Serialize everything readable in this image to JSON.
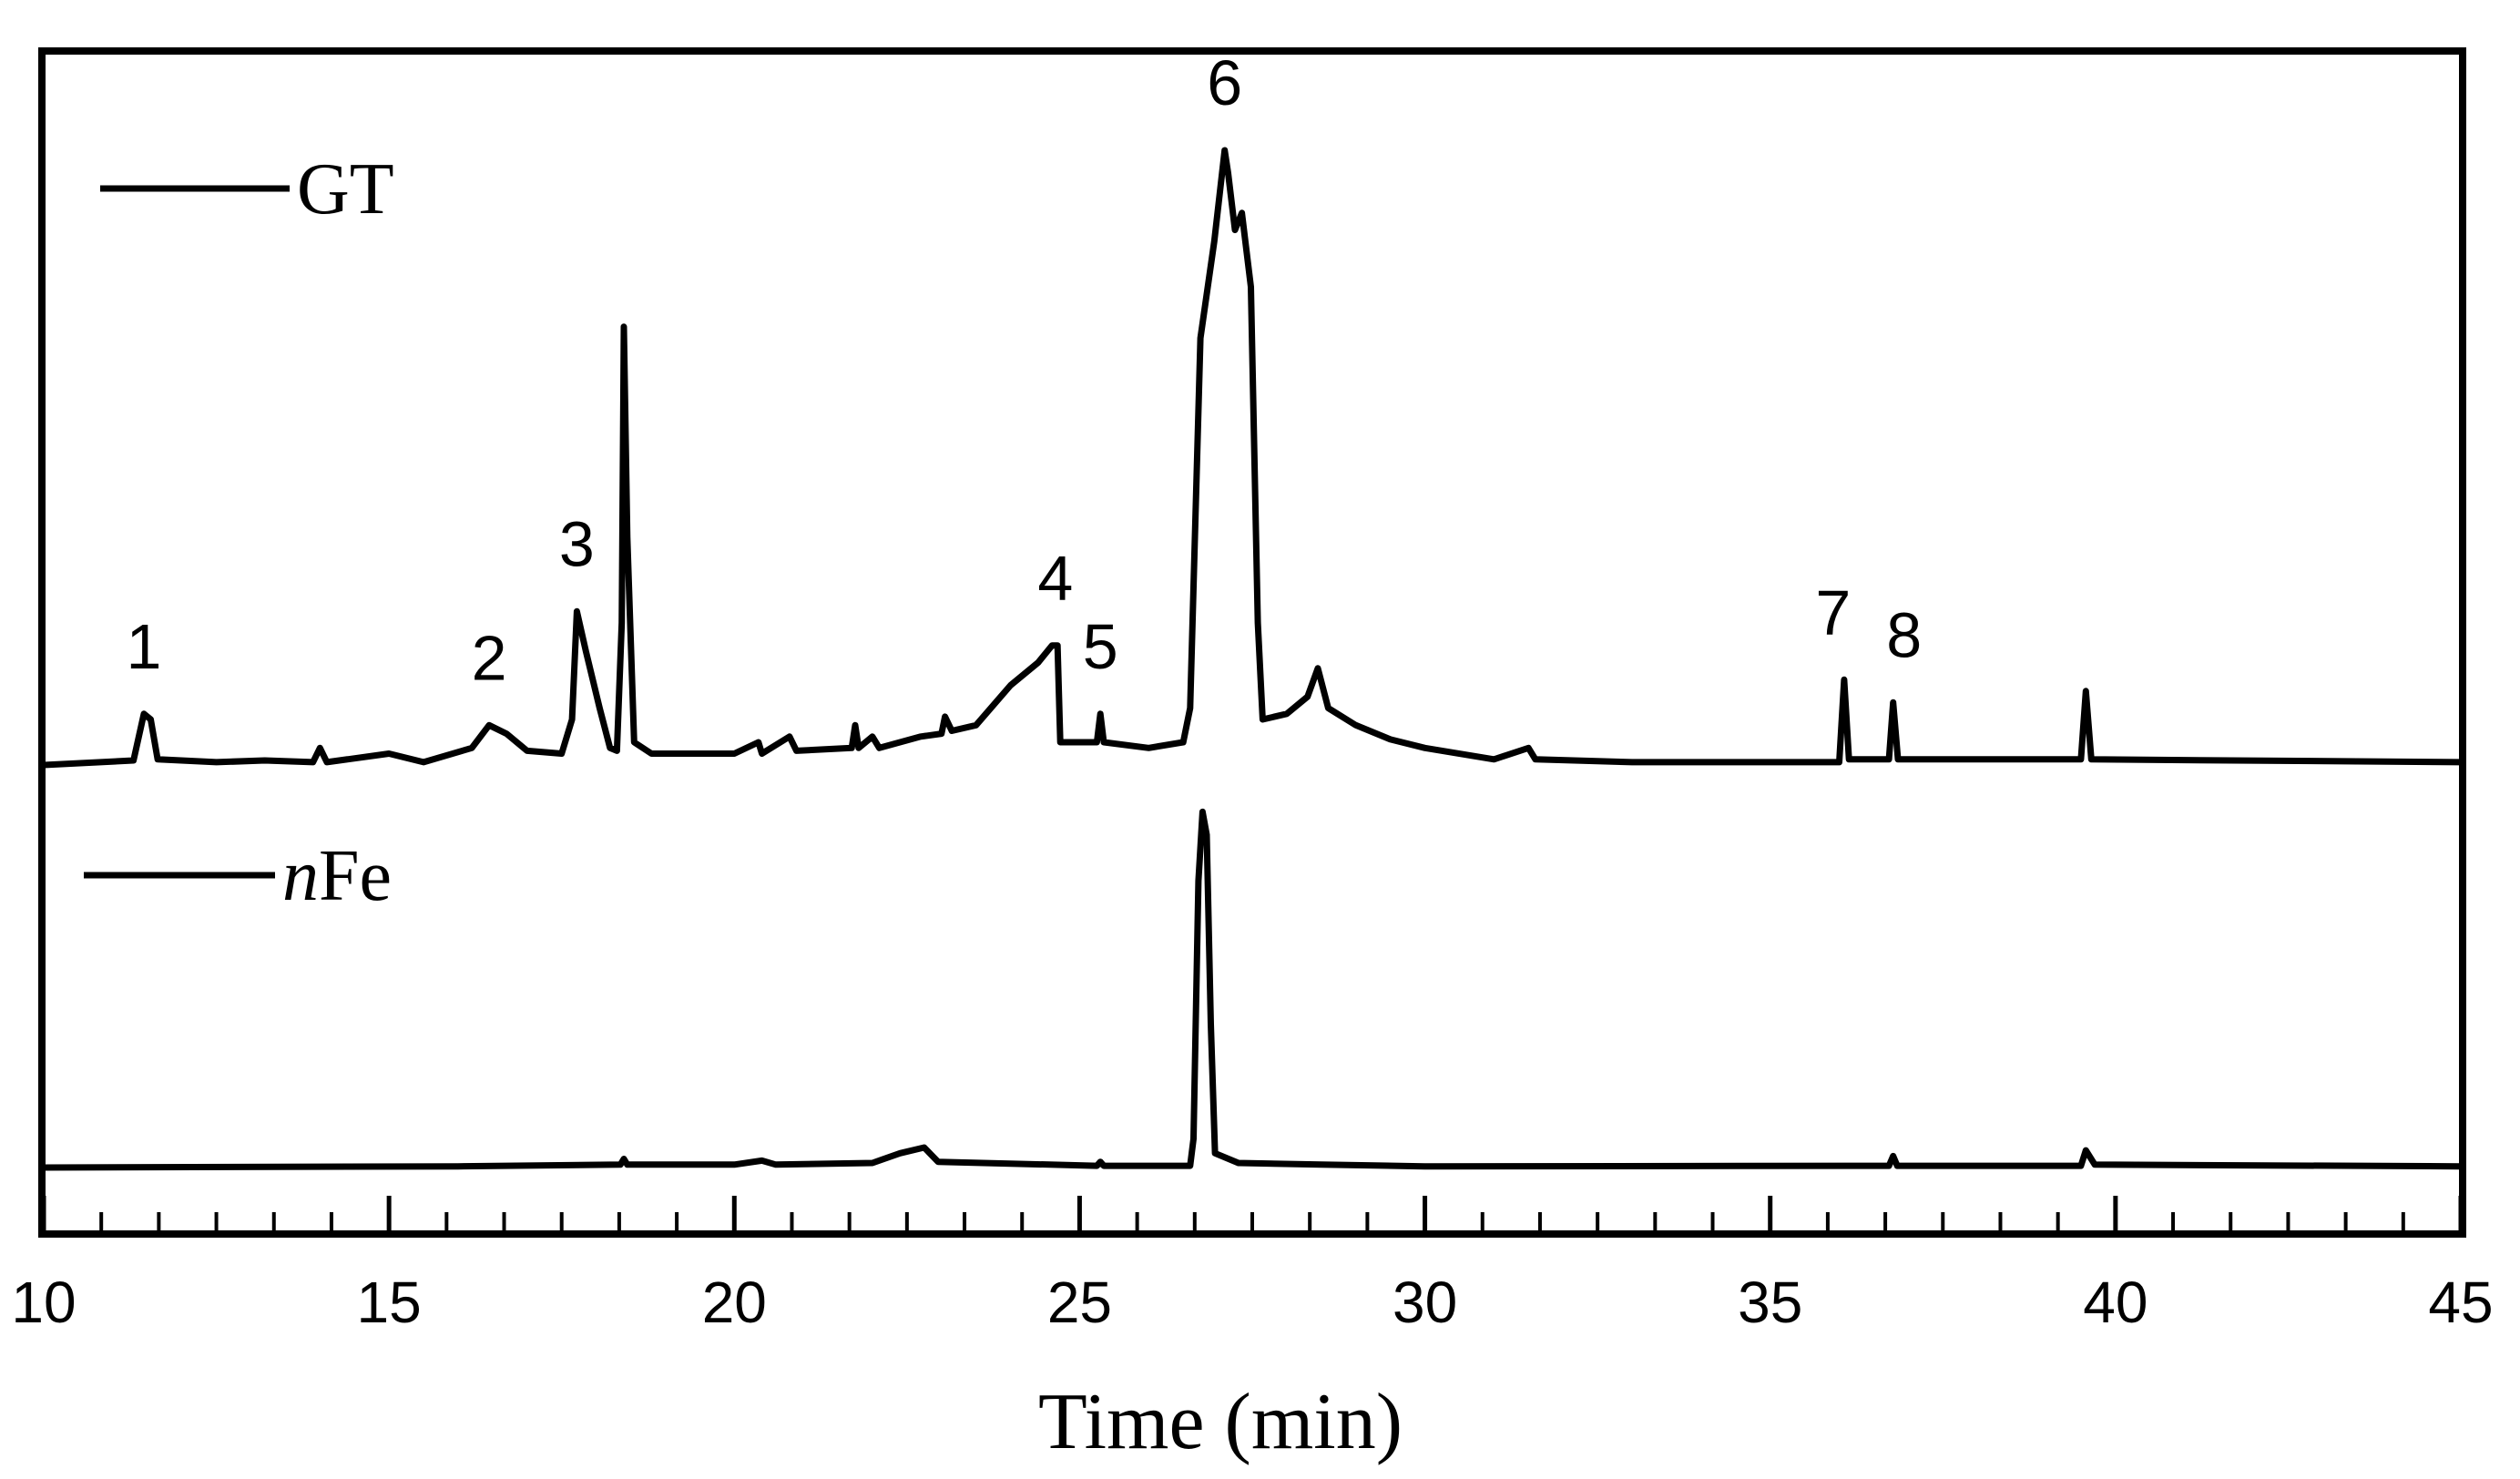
{
  "chart_data": {
    "type": "line",
    "title": "",
    "xlabel": "Time (min)",
    "ylabel": "",
    "xlim": [
      10,
      45
    ],
    "xticks": [
      10,
      15,
      20,
      25,
      30,
      35,
      40,
      45
    ],
    "xticks_labels": [
      "10",
      "15",
      "20",
      "25",
      "30",
      "35",
      "40",
      "45"
    ],
    "minor_tick_step": 0.833,
    "grid": false,
    "legend_position": "top-left, one entry above each trace",
    "series": [
      {
        "name": "GT",
        "name_italic_prefix": "",
        "name_rest": "GT",
        "baseline": 0,
        "points": [
          [
            10.0,
            0
          ],
          [
            11.3,
            0.8
          ],
          [
            11.45,
            9
          ],
          [
            11.55,
            8
          ],
          [
            11.65,
            1
          ],
          [
            12.5,
            0.5
          ],
          [
            13.2,
            0.8
          ],
          [
            13.9,
            0.5
          ],
          [
            14.0,
            3
          ],
          [
            14.1,
            0.5
          ],
          [
            15.0,
            2
          ],
          [
            15.5,
            0.5
          ],
          [
            16.2,
            3
          ],
          [
            16.45,
            7
          ],
          [
            16.7,
            5.5
          ],
          [
            17.0,
            2.5
          ],
          [
            17.5,
            2
          ],
          [
            17.65,
            8
          ],
          [
            17.72,
            27
          ],
          [
            17.85,
            20
          ],
          [
            18.05,
            10
          ],
          [
            18.2,
            3
          ],
          [
            18.3,
            2.5
          ],
          [
            18.37,
            25
          ],
          [
            18.4,
            77
          ],
          [
            18.45,
            40
          ],
          [
            18.55,
            4
          ],
          [
            18.8,
            2
          ],
          [
            20.0,
            2
          ],
          [
            20.35,
            4
          ],
          [
            20.4,
            2
          ],
          [
            20.8,
            5
          ],
          [
            20.9,
            2.5
          ],
          [
            21.7,
            3
          ],
          [
            21.75,
            7
          ],
          [
            21.8,
            3
          ],
          [
            22.0,
            5
          ],
          [
            22.1,
            3
          ],
          [
            22.7,
            5
          ],
          [
            23.0,
            5.5
          ],
          [
            23.05,
            8.5
          ],
          [
            23.15,
            6
          ],
          [
            23.5,
            7
          ],
          [
            24.0,
            14
          ],
          [
            24.4,
            18
          ],
          [
            24.6,
            21
          ],
          [
            24.68,
            21
          ],
          [
            24.72,
            4
          ],
          [
            25.0,
            4
          ],
          [
            25.25,
            4
          ],
          [
            25.3,
            9
          ],
          [
            25.35,
            4
          ],
          [
            26.0,
            3
          ],
          [
            26.5,
            4
          ],
          [
            26.6,
            10
          ],
          [
            26.75,
            75
          ],
          [
            26.95,
            92
          ],
          [
            27.1,
            108
          ],
          [
            27.15,
            104
          ],
          [
            27.25,
            94
          ],
          [
            27.35,
            97
          ],
          [
            27.4,
            92
          ],
          [
            27.48,
            84
          ],
          [
            27.58,
            25
          ],
          [
            27.65,
            8
          ],
          [
            28.0,
            9
          ],
          [
            28.3,
            12
          ],
          [
            28.45,
            17
          ],
          [
            28.6,
            10
          ],
          [
            29.0,
            7
          ],
          [
            29.5,
            4.5
          ],
          [
            30.0,
            3
          ],
          [
            31.0,
            1
          ],
          [
            31.5,
            3
          ],
          [
            31.6,
            1
          ],
          [
            33.0,
            0.5
          ],
          [
            36.0,
            0.5
          ],
          [
            36.07,
            15
          ],
          [
            36.14,
            1
          ],
          [
            36.72,
            1
          ],
          [
            36.78,
            11
          ],
          [
            36.85,
            1
          ],
          [
            39.5,
            1
          ],
          [
            39.57,
            13
          ],
          [
            39.65,
            1
          ],
          [
            45.0,
            0.5
          ]
        ]
      },
      {
        "name": "nFe",
        "name_italic_prefix": "n",
        "name_rest": "Fe",
        "baseline": 0,
        "points": [
          [
            10.0,
            0
          ],
          [
            16.0,
            0.2
          ],
          [
            18.35,
            0.5
          ],
          [
            18.4,
            1.5
          ],
          [
            18.45,
            0.5
          ],
          [
            20.0,
            0.5
          ],
          [
            20.4,
            1.2
          ],
          [
            20.6,
            0.5
          ],
          [
            22.0,
            0.8
          ],
          [
            22.4,
            2.5
          ],
          [
            22.75,
            3.5
          ],
          [
            22.95,
            1
          ],
          [
            25.25,
            0.3
          ],
          [
            25.3,
            1
          ],
          [
            25.35,
            0.3
          ],
          [
            26.6,
            0.3
          ],
          [
            26.65,
            5
          ],
          [
            26.72,
            50
          ],
          [
            26.78,
            62
          ],
          [
            26.84,
            58
          ],
          [
            26.9,
            25
          ],
          [
            26.96,
            2.5
          ],
          [
            27.3,
            0.8
          ],
          [
            28.5,
            0.5
          ],
          [
            30.0,
            0.2
          ],
          [
            36.72,
            0.3
          ],
          [
            36.78,
            2
          ],
          [
            36.84,
            0.3
          ],
          [
            39.5,
            0.3
          ],
          [
            39.57,
            3
          ],
          [
            39.7,
            0.5
          ],
          [
            45.0,
            0.2
          ]
        ]
      }
    ],
    "annotations": [
      {
        "text": "1",
        "x": 11.45,
        "on_series": 0,
        "y": 9
      },
      {
        "text": "2",
        "x": 16.45,
        "on_series": 0,
        "y": 7
      },
      {
        "text": "3",
        "x": 17.72,
        "on_series": 0,
        "y": 27
      },
      {
        "text": "4",
        "x": 24.65,
        "on_series": 0,
        "y": 21
      },
      {
        "text": "5",
        "x": 25.3,
        "on_series": 0,
        "y": 9
      },
      {
        "text": "6",
        "x": 27.1,
        "on_series": 0,
        "y": 108
      },
      {
        "text": "7",
        "x": 36.07,
        "on_series": 0,
        "y": 15
      },
      {
        "text": "8",
        "x": 36.78,
        "on_series": 0,
        "y": 11
      }
    ]
  }
}
